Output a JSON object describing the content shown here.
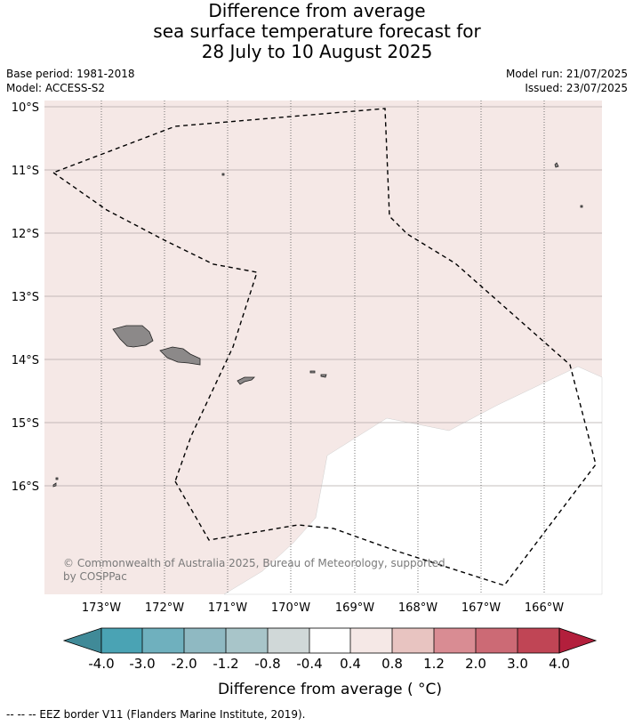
{
  "title": {
    "line1": "Difference from average",
    "line2": "sea surface temperature forecast for",
    "line3": "28 July to 10 August 2025"
  },
  "meta": {
    "base_period": "Base period: 1981-2018",
    "model": "Model: ACCESS-S2",
    "model_run": "Model run: 21/07/2025",
    "issued": "Issued: 23/07/2025"
  },
  "map": {
    "lat_labels": [
      "10°S",
      "11°S",
      "12°S",
      "13°S",
      "14°S",
      "15°S",
      "16°S"
    ],
    "lon_labels": [
      "173°W",
      "172°W",
      "171°W",
      "170°W",
      "169°W",
      "168°W",
      "167°W",
      "166°W"
    ],
    "anomaly_fill_color": "#f5e8e6",
    "neutral_fill_color": "#ffffff",
    "land_color": "#8c8989",
    "copyright_line1": "© Commonwealth of Australia 2025, Bureau of Meteorology, supported",
    "copyright_line2": "by COSPPac"
  },
  "colorbar": {
    "labels": [
      "-4.0",
      "-3.0",
      "-2.0",
      "-1.2",
      "-0.8",
      "-0.4",
      "0.4",
      "0.8",
      "1.2",
      "2.0",
      "3.0",
      "4.0"
    ],
    "colors": [
      "#408a98",
      "#4aa3b4",
      "#6fb0be",
      "#8fb9c2",
      "#a8c5c9",
      "#d0d8d8",
      "#ffffff",
      "#f5e8e6",
      "#e8c4c1",
      "#d98c93",
      "#cc6a75",
      "#c04555",
      "#b31f3c"
    ],
    "title": "Difference from average ( °C)"
  },
  "footer": "--  --  -- EEZ border V11 (Flanders Marine Institute, 2019)."
}
